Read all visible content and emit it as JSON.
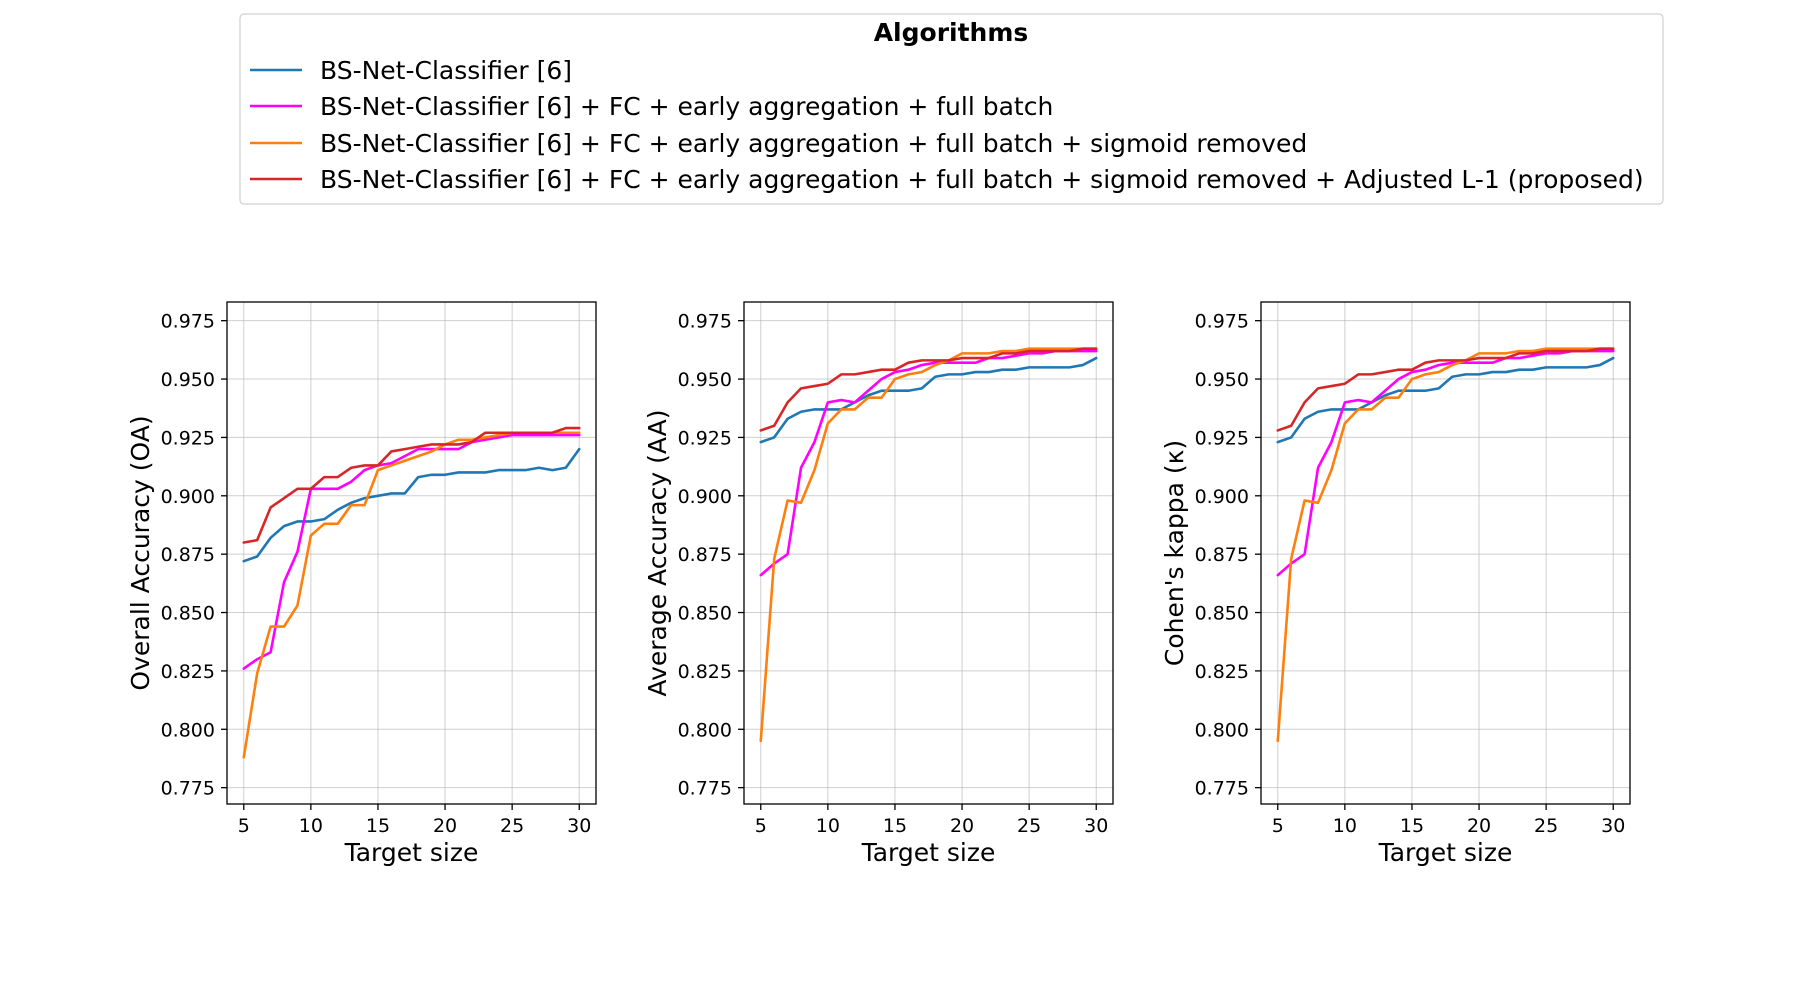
{
  "legend": {
    "title": "Algorithms",
    "placement": "top-center",
    "entries": [
      "BS-Net-Classifier [6]",
      "BS-Net-Classifier [6] + FC + early aggregation + full batch",
      "BS-Net-Classifier [6] + FC + early aggregation + full batch + sigmoid removed",
      "BS-Net-Classifier [6] + FC + early aggregation + full batch + sigmoid removed + Adjusted L-1 (proposed)"
    ]
  },
  "colors": {
    "series": [
      "#1f77b4",
      "#ff00ff",
      "#ff7f0e",
      "#d62728"
    ]
  },
  "chart_data": [
    {
      "type": "line",
      "xlabel": "Target size",
      "ylabel": "Overall Accuracy (OA)",
      "xlim": [
        3.75,
        31.25
      ],
      "ylim": [
        0.768,
        0.983
      ],
      "xticks": [
        "5",
        "10",
        "15",
        "20",
        "25",
        "30"
      ],
      "yticks": [
        "0.775",
        "0.800",
        "0.825",
        "0.850",
        "0.875",
        "0.900",
        "0.925",
        "0.950",
        "0.975"
      ],
      "grid": true,
      "x": [
        5,
        6,
        7,
        8,
        9,
        10,
        11,
        12,
        13,
        14,
        15,
        16,
        17,
        18,
        19,
        20,
        21,
        22,
        23,
        24,
        25,
        26,
        27,
        28,
        29,
        30
      ],
      "series": [
        {
          "name": "BS-Net-Classifier [6]",
          "values": [
            0.872,
            0.874,
            0.882,
            0.887,
            0.889,
            0.889,
            0.89,
            0.894,
            0.897,
            0.899,
            0.9,
            0.901,
            0.901,
            0.908,
            0.909,
            0.909,
            0.91,
            0.91,
            0.91,
            0.911,
            0.911,
            0.911,
            0.912,
            0.911,
            0.912,
            0.92
          ]
        },
        {
          "name": "BS-Net-Classifier [6] + FC + early aggregation + full batch",
          "values": [
            0.826,
            0.83,
            0.833,
            0.863,
            0.876,
            0.903,
            0.903,
            0.903,
            0.906,
            0.911,
            0.913,
            0.914,
            0.917,
            0.92,
            0.92,
            0.92,
            0.92,
            0.923,
            0.924,
            0.925,
            0.926,
            0.926,
            0.926,
            0.926,
            0.926,
            0.926
          ]
        },
        {
          "name": "BS-Net-Classifier [6] + FC + early aggregation + full batch + sigmoid removed",
          "values": [
            0.788,
            0.824,
            0.844,
            0.844,
            0.853,
            0.883,
            0.888,
            0.888,
            0.896,
            0.896,
            0.911,
            0.913,
            0.915,
            0.917,
            0.919,
            0.922,
            0.924,
            0.924,
            0.925,
            0.926,
            0.927,
            0.927,
            0.927,
            0.927,
            0.927,
            0.927
          ]
        },
        {
          "name": "BS-Net-Classifier [6] + FC + early aggregation + full batch + sigmoid removed + Adjusted L-1 (proposed)",
          "values": [
            0.88,
            0.881,
            0.895,
            0.899,
            0.903,
            0.903,
            0.908,
            0.908,
            0.912,
            0.913,
            0.913,
            0.919,
            0.92,
            0.921,
            0.922,
            0.922,
            0.922,
            0.923,
            0.927,
            0.927,
            0.927,
            0.927,
            0.927,
            0.927,
            0.929,
            0.929
          ]
        }
      ]
    },
    {
      "type": "line",
      "xlabel": "Target size",
      "ylabel": "Average Accuracy (AA)",
      "xlim": [
        3.75,
        31.25
      ],
      "ylim": [
        0.768,
        0.983
      ],
      "xticks": [
        "5",
        "10",
        "15",
        "20",
        "25",
        "30"
      ],
      "yticks": [
        "0.775",
        "0.800",
        "0.825",
        "0.850",
        "0.875",
        "0.900",
        "0.925",
        "0.950",
        "0.975"
      ],
      "grid": true,
      "x": [
        5,
        6,
        7,
        8,
        9,
        10,
        11,
        12,
        13,
        14,
        15,
        16,
        17,
        18,
        19,
        20,
        21,
        22,
        23,
        24,
        25,
        26,
        27,
        28,
        29,
        30
      ],
      "series": [
        {
          "name": "BS-Net-Classifier [6]",
          "values": [
            0.923,
            0.925,
            0.933,
            0.936,
            0.937,
            0.937,
            0.937,
            0.94,
            0.943,
            0.945,
            0.945,
            0.945,
            0.946,
            0.951,
            0.952,
            0.952,
            0.953,
            0.953,
            0.954,
            0.954,
            0.955,
            0.955,
            0.955,
            0.955,
            0.956,
            0.959
          ]
        },
        {
          "name": "BS-Net-Classifier [6] + FC + early aggregation + full batch",
          "values": [
            0.866,
            0.871,
            0.875,
            0.912,
            0.923,
            0.94,
            0.941,
            0.94,
            0.945,
            0.95,
            0.953,
            0.954,
            0.956,
            0.957,
            0.957,
            0.957,
            0.957,
            0.959,
            0.959,
            0.96,
            0.961,
            0.961,
            0.962,
            0.962,
            0.962,
            0.962
          ]
        },
        {
          "name": "BS-Net-Classifier [6] + FC + early aggregation + full batch + sigmoid removed",
          "values": [
            0.795,
            0.873,
            0.898,
            0.897,
            0.911,
            0.931,
            0.937,
            0.937,
            0.942,
            0.942,
            0.95,
            0.952,
            0.953,
            0.956,
            0.958,
            0.961,
            0.961,
            0.961,
            0.962,
            0.962,
            0.963,
            0.963,
            0.963,
            0.963,
            0.963,
            0.963
          ]
        },
        {
          "name": "BS-Net-Classifier [6] + FC + early aggregation + full batch + sigmoid removed + Adjusted L-1 (proposed)",
          "values": [
            0.928,
            0.93,
            0.94,
            0.946,
            0.947,
            0.948,
            0.952,
            0.952,
            0.953,
            0.954,
            0.954,
            0.957,
            0.958,
            0.958,
            0.958,
            0.959,
            0.959,
            0.959,
            0.961,
            0.961,
            0.962,
            0.962,
            0.962,
            0.962,
            0.963,
            0.963
          ]
        }
      ]
    },
    {
      "type": "line",
      "xlabel": "Target size",
      "ylabel": "Cohen's kappa (κ)",
      "xlim": [
        3.75,
        31.25
      ],
      "ylim": [
        0.768,
        0.983
      ],
      "xticks": [
        "5",
        "10",
        "15",
        "20",
        "25",
        "30"
      ],
      "yticks": [
        "0.775",
        "0.800",
        "0.825",
        "0.850",
        "0.875",
        "0.900",
        "0.925",
        "0.950",
        "0.975"
      ],
      "grid": true,
      "x": [
        5,
        6,
        7,
        8,
        9,
        10,
        11,
        12,
        13,
        14,
        15,
        16,
        17,
        18,
        19,
        20,
        21,
        22,
        23,
        24,
        25,
        26,
        27,
        28,
        29,
        30
      ],
      "series": [
        {
          "name": "BS-Net-Classifier [6]",
          "values": [
            0.923,
            0.925,
            0.933,
            0.936,
            0.937,
            0.937,
            0.937,
            0.94,
            0.943,
            0.945,
            0.945,
            0.945,
            0.946,
            0.951,
            0.952,
            0.952,
            0.953,
            0.953,
            0.954,
            0.954,
            0.955,
            0.955,
            0.955,
            0.955,
            0.956,
            0.959
          ]
        },
        {
          "name": "BS-Net-Classifier [6] + FC + early aggregation + full batch",
          "values": [
            0.866,
            0.871,
            0.875,
            0.912,
            0.923,
            0.94,
            0.941,
            0.94,
            0.945,
            0.95,
            0.953,
            0.954,
            0.956,
            0.957,
            0.957,
            0.957,
            0.957,
            0.959,
            0.959,
            0.96,
            0.961,
            0.961,
            0.962,
            0.962,
            0.962,
            0.962
          ]
        },
        {
          "name": "BS-Net-Classifier [6] + FC + early aggregation + full batch + sigmoid removed",
          "values": [
            0.795,
            0.873,
            0.898,
            0.897,
            0.911,
            0.931,
            0.937,
            0.937,
            0.942,
            0.942,
            0.95,
            0.952,
            0.953,
            0.956,
            0.958,
            0.961,
            0.961,
            0.961,
            0.962,
            0.962,
            0.963,
            0.963,
            0.963,
            0.963,
            0.963,
            0.963
          ]
        },
        {
          "name": "BS-Net-Classifier [6] + FC + early aggregation + full batch + sigmoid removed + Adjusted L-1 (proposed)",
          "values": [
            0.928,
            0.93,
            0.94,
            0.946,
            0.947,
            0.948,
            0.952,
            0.952,
            0.953,
            0.954,
            0.954,
            0.957,
            0.958,
            0.958,
            0.958,
            0.959,
            0.959,
            0.959,
            0.961,
            0.961,
            0.962,
            0.962,
            0.962,
            0.962,
            0.963,
            0.963
          ]
        }
      ]
    }
  ]
}
